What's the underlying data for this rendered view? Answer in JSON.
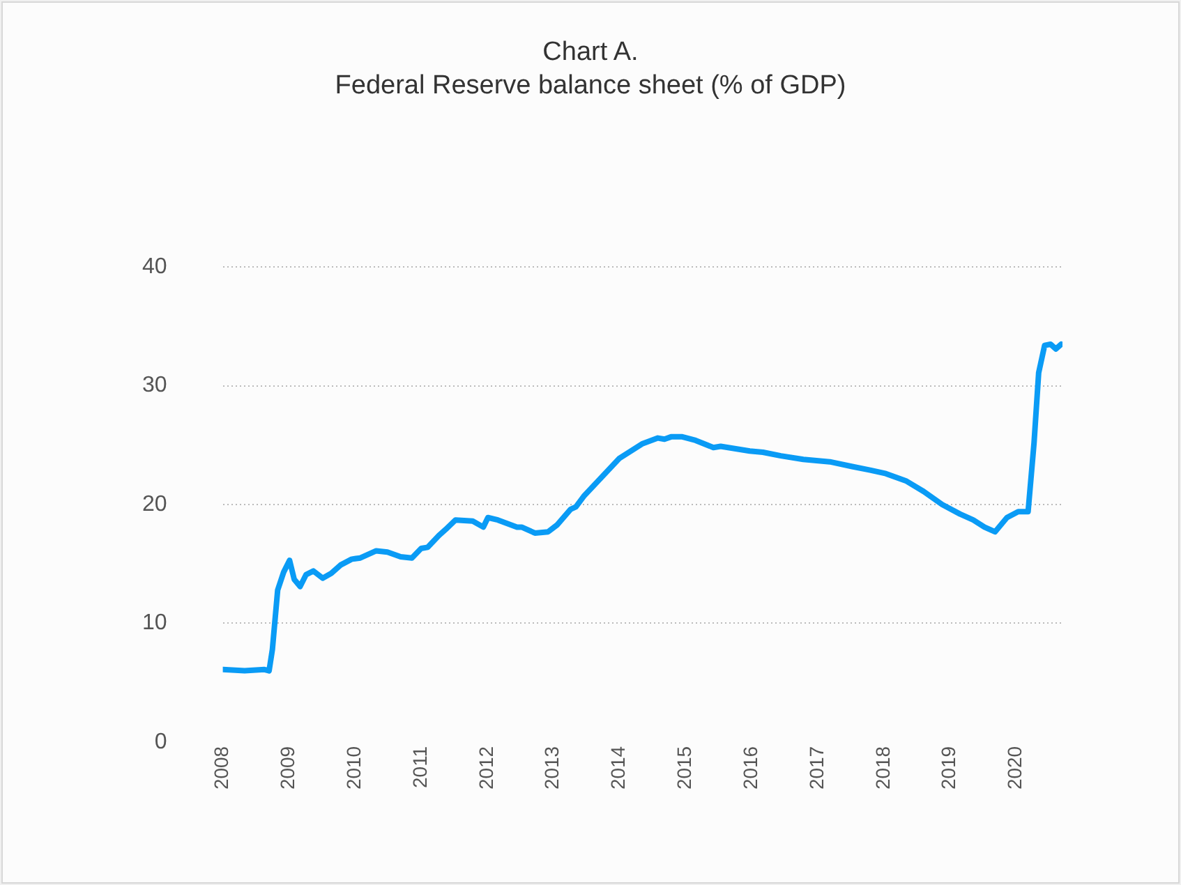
{
  "chart_data": {
    "type": "line",
    "title": "Chart A.",
    "subtitle": "Federal Reserve balance sheet (% of GDP)",
    "x": [
      2008.0,
      2008.33,
      2008.63,
      2008.7,
      2008.75,
      2008.83,
      2008.92,
      2009.01,
      2009.08,
      2009.17,
      2009.26,
      2009.37,
      2009.51,
      2009.64,
      2009.78,
      2009.95,
      2010.08,
      2010.32,
      2010.49,
      2010.69,
      2010.86,
      2011.0,
      2011.1,
      2011.27,
      2011.37,
      2011.52,
      2011.78,
      2011.94,
      2012.01,
      2012.16,
      2012.45,
      2012.52,
      2012.72,
      2012.92,
      2013.06,
      2013.26,
      2013.34,
      2013.46,
      2013.73,
      2014.0,
      2014.34,
      2014.58,
      2014.68,
      2014.78,
      2014.95,
      2015.15,
      2015.42,
      2015.53,
      2015.97,
      2016.17,
      2016.44,
      2016.78,
      2017.18,
      2017.52,
      2017.79,
      2018.03,
      2018.33,
      2018.6,
      2018.88,
      2019.15,
      2019.35,
      2019.52,
      2019.68,
      2019.86,
      2020.03,
      2020.18,
      2020.27,
      2020.34,
      2020.43,
      2020.52,
      2020.6,
      2020.68
    ],
    "series": [
      {
        "color": "#0a9bf5",
        "values": [
          6.1,
          6.0,
          6.1,
          6.0,
          7.8,
          12.8,
          14.3,
          15.3,
          13.7,
          13.1,
          14.1,
          14.4,
          13.8,
          14.2,
          14.9,
          15.4,
          15.5,
          16.1,
          16.0,
          15.6,
          15.5,
          16.3,
          16.4,
          17.4,
          17.9,
          18.7,
          18.6,
          18.1,
          18.9,
          18.7,
          18.1,
          18.1,
          17.6,
          17.7,
          18.3,
          19.6,
          19.8,
          20.7,
          22.3,
          23.9,
          25.1,
          25.6,
          25.5,
          25.7,
          25.7,
          25.4,
          24.8,
          24.9,
          24.5,
          24.4,
          24.1,
          23.8,
          23.6,
          23.2,
          22.9,
          22.6,
          22.0,
          21.1,
          20.0,
          19.2,
          18.7,
          18.1,
          17.7,
          18.9,
          19.4,
          19.4,
          25.2,
          31.1,
          33.4,
          33.5,
          33.1,
          33.5
        ]
      }
    ],
    "xlim": [
      2008,
      2020.7
    ],
    "xticks": [
      2008,
      2009,
      2010,
      2011,
      2012,
      2013,
      2014,
      2015,
      2016,
      2017,
      2018,
      2019,
      2020
    ],
    "ylim": [
      0,
      40
    ],
    "yticks": [
      0,
      10,
      20,
      30,
      40
    ],
    "grid": "y",
    "legend": false,
    "marker": "none",
    "line_style": "solid"
  }
}
